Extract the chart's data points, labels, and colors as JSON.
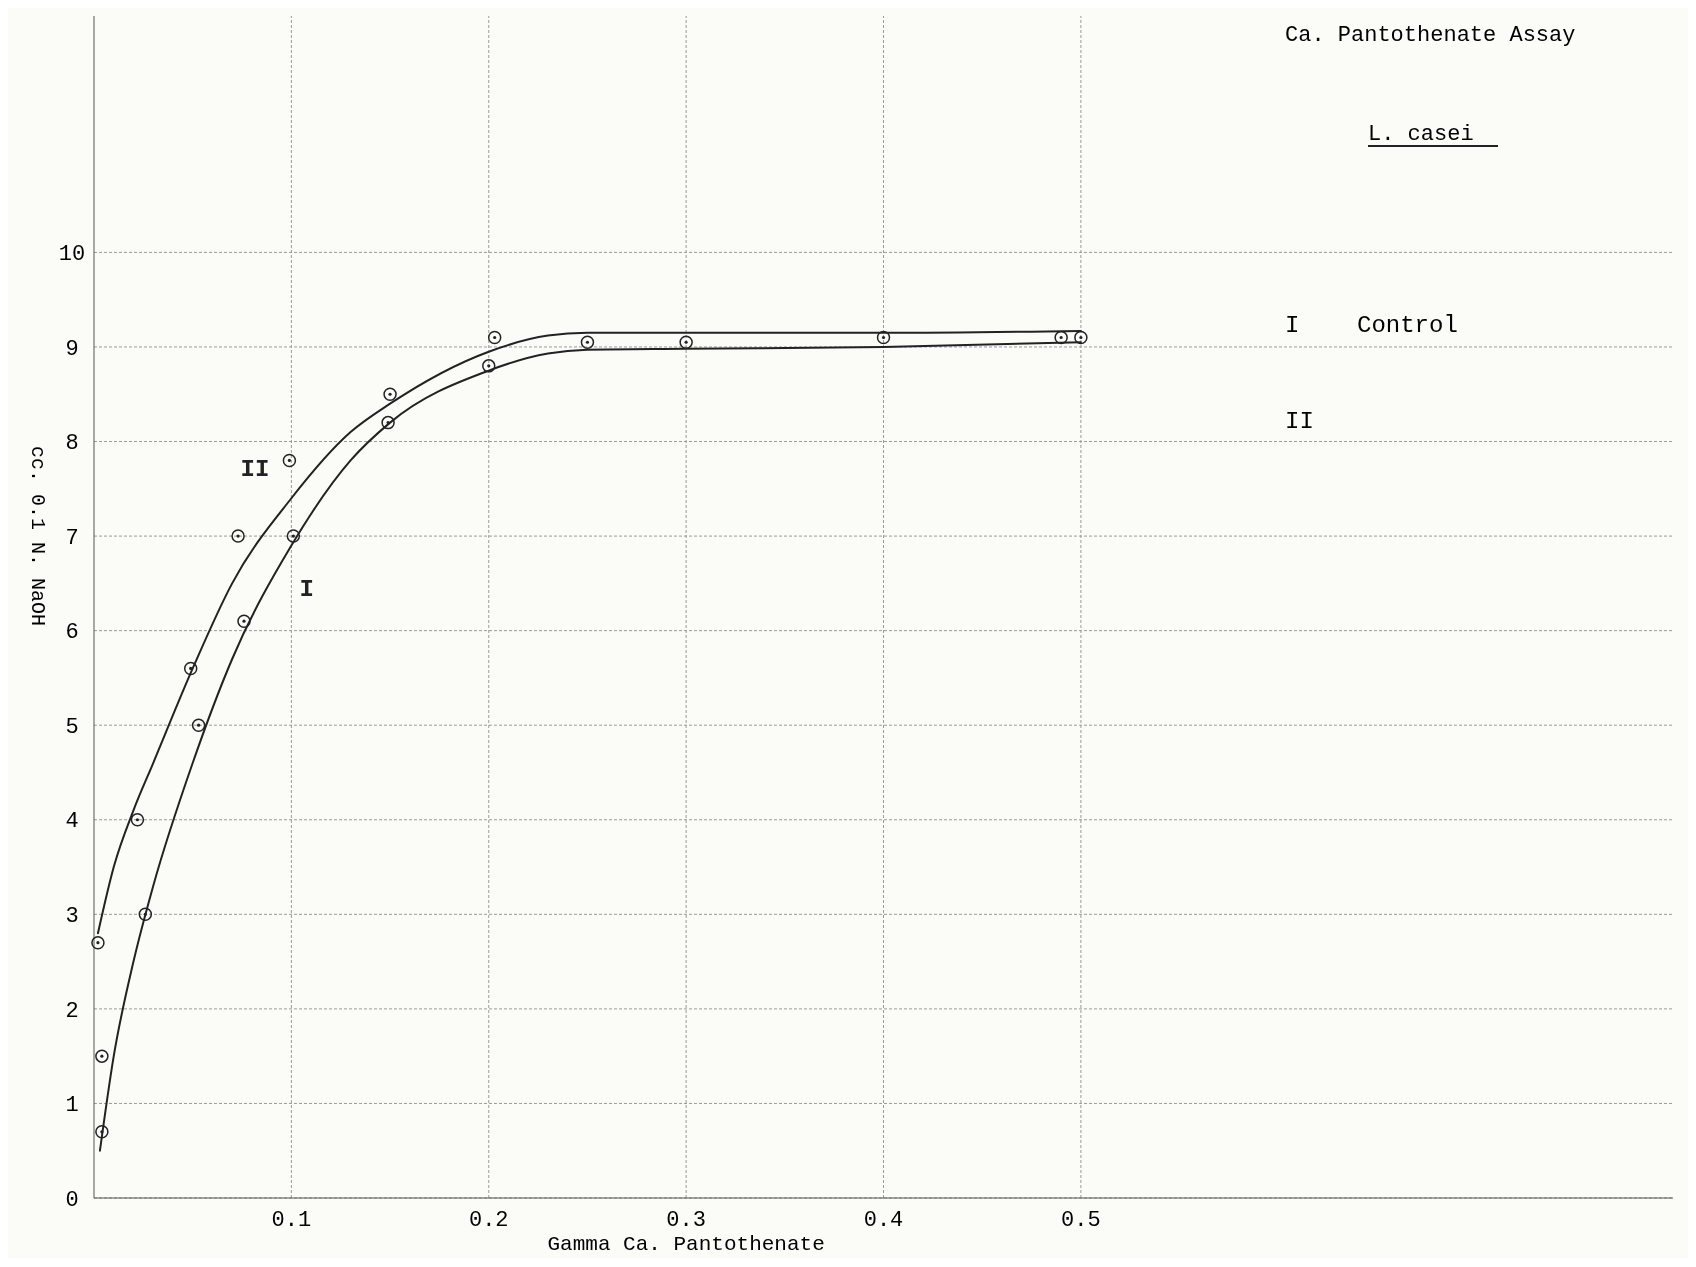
{
  "chart_data": {
    "type": "scatter",
    "title": "Ca. Pantothenate Assay",
    "subtitle": "L. casei",
    "xlabel": "Gamma Ca. Pantothenate",
    "ylabel": "cc. 0.1 N. NaOH",
    "xlim": [
      0,
      0.8
    ],
    "ylim": [
      0,
      12.5
    ],
    "xticks": [
      0.1,
      0.2,
      0.3,
      0.4,
      0.5
    ],
    "yticks": [
      0,
      1,
      2,
      3,
      4,
      5,
      6,
      7,
      8,
      9,
      10
    ],
    "grid": true,
    "marker": "circle",
    "annotations": [
      "I    Control",
      "II"
    ],
    "series": [
      {
        "color": "#222222",
        "x": [
          0.004,
          0.004,
          0.026,
          0.053,
          0.076,
          0.101,
          0.149,
          0.2,
          0.25,
          0.3,
          0.5
        ],
        "values": [
          0.7,
          1.5,
          3.0,
          5.0,
          6.1,
          7.0,
          8.2,
          8.8,
          9.05,
          9.05,
          9.1
        ]
      },
      {
        "color": "#222222",
        "x": [
          0.002,
          0.022,
          0.049,
          0.073,
          0.099,
          0.15,
          0.203,
          0.4,
          0.49
        ],
        "values": [
          2.7,
          4.0,
          5.6,
          7.0,
          7.8,
          8.5,
          9.1,
          9.1,
          9.1
        ]
      },
      {
        "type": "line",
        "name": "I",
        "color": "#222222",
        "line_style": "solid",
        "marker": "none",
        "x": [
          0.003,
          0.01,
          0.02,
          0.03,
          0.05,
          0.07,
          0.1,
          0.13,
          0.15,
          0.2,
          0.23,
          0.25,
          0.3,
          0.4,
          0.5
        ],
        "values": [
          0.5,
          1.5,
          2.5,
          3.3,
          4.6,
          5.7,
          6.9,
          7.8,
          8.2,
          8.75,
          8.93,
          8.97,
          8.98,
          9.0,
          9.05
        ]
      },
      {
        "type": "line",
        "name": "II",
        "color": "#222222",
        "line_style": "solid",
        "marker": "none",
        "x": [
          0.002,
          0.01,
          0.02,
          0.03,
          0.05,
          0.07,
          0.1,
          0.13,
          0.15,
          0.2,
          0.23,
          0.25,
          0.3,
          0.4,
          0.5
        ],
        "values": [
          2.8,
          3.5,
          4.1,
          4.6,
          5.6,
          6.5,
          7.4,
          8.1,
          8.4,
          8.95,
          9.12,
          9.15,
          9.15,
          9.15,
          9.17
        ]
      }
    ]
  }
}
